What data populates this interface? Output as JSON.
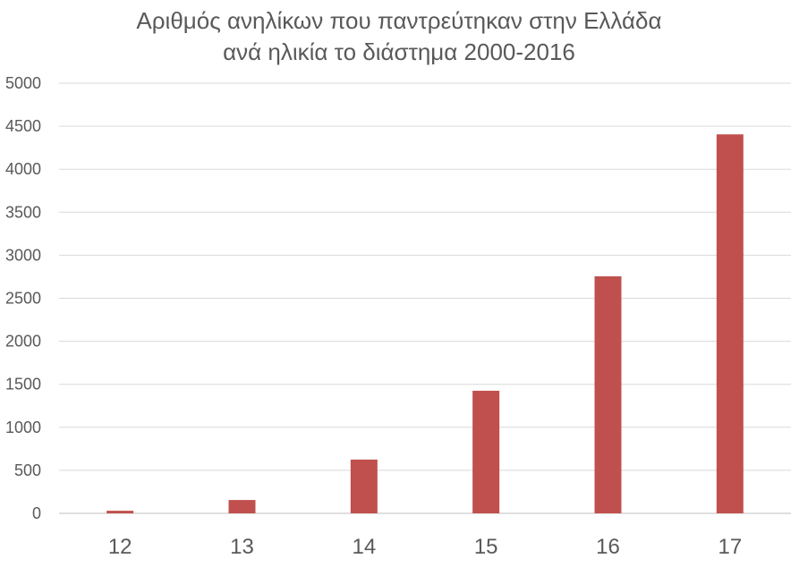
{
  "chart_data": {
    "type": "bar",
    "title_lines": [
      "Αριθμός ανηλίκων που παντρεύτηκαν στην Ελλάδα",
      "ανά ηλικία το διάστημα 2000-2016"
    ],
    "xlabel": "",
    "ylabel": "",
    "categories": [
      "12",
      "13",
      "14",
      "15",
      "16",
      "17"
    ],
    "values": [
      30,
      155,
      625,
      1425,
      2755,
      4405
    ],
    "ylim": [
      0,
      5000
    ],
    "yticks": [
      "0",
      "500",
      "1000",
      "1500",
      "2000",
      "2500",
      "3000",
      "3500",
      "4000",
      "4500",
      "5000"
    ],
    "bar_color": "#c0504d",
    "grid": true,
    "legend": "none"
  }
}
